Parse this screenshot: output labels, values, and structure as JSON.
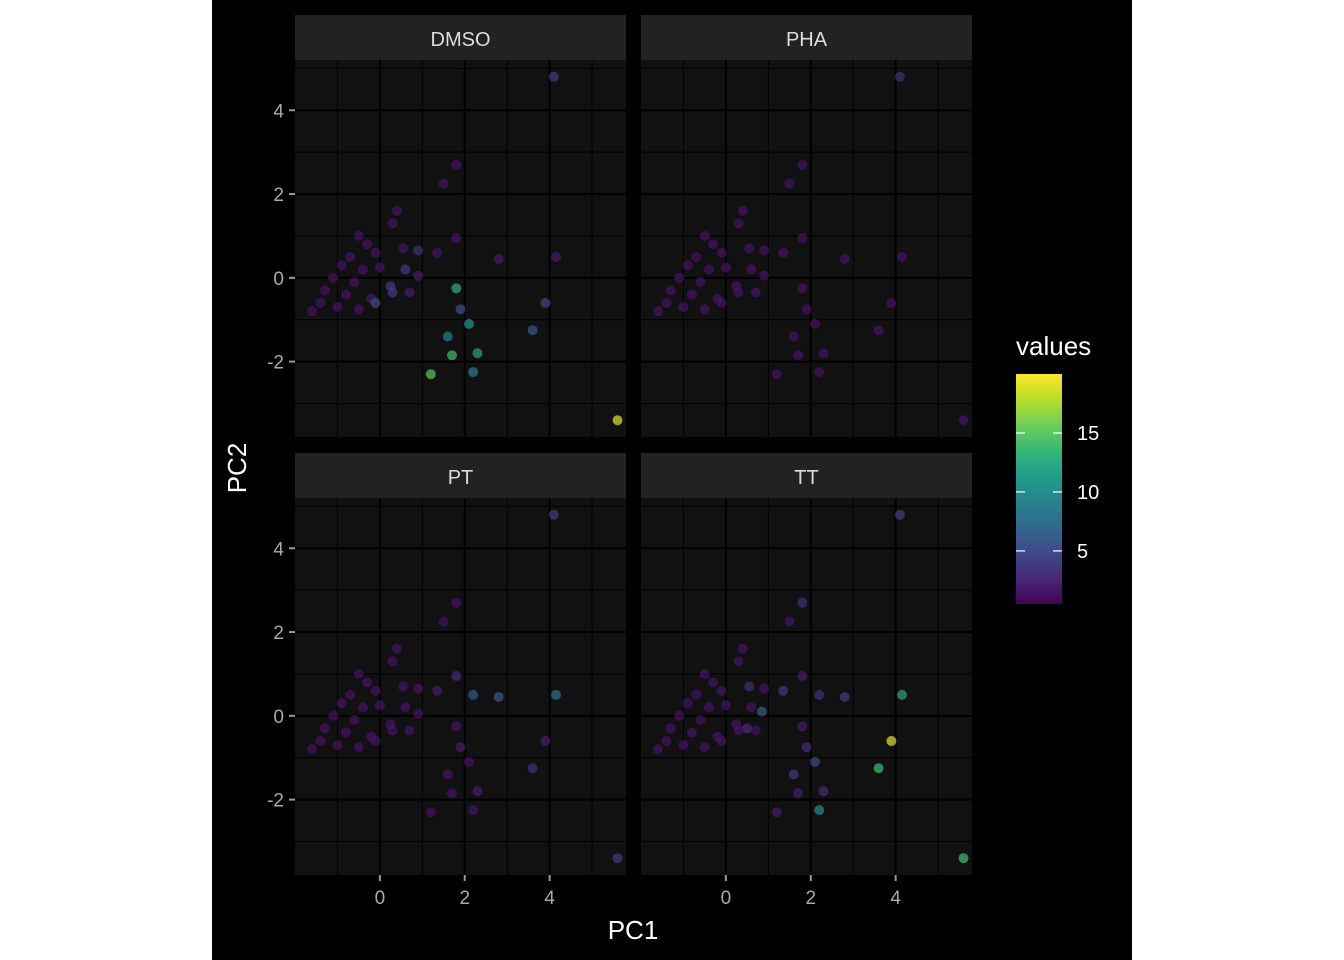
{
  "chart_data": {
    "type": "scatter",
    "title": "",
    "xlabel": "PC1",
    "ylabel": "PC2",
    "xlim": [
      -2,
      5.8
    ],
    "ylim": [
      -3.8,
      5.2
    ],
    "x_ticks": [
      0,
      2,
      4
    ],
    "y_ticks": [
      -2,
      0,
      2,
      4
    ],
    "grid": true,
    "legend": {
      "title": "values",
      "position": "right",
      "type": "colorbar",
      "range": [
        0.5,
        20
      ],
      "ticks": [
        5,
        10,
        15
      ]
    },
    "colormap": [
      "#440154",
      "#482878",
      "#3e4989",
      "#31688e",
      "#26828e",
      "#1f9e89",
      "#35b779",
      "#6ece58",
      "#b5de2b",
      "#fde725"
    ],
    "panels": [
      {
        "label": "DMSO",
        "points": [
          [
            4.1,
            4.8,
            4
          ],
          [
            1.8,
            2.7,
            1.5
          ],
          [
            1.5,
            2.25,
            1.5
          ],
          [
            0.4,
            1.6,
            1.5
          ],
          [
            0.3,
            1.3,
            1.5
          ],
          [
            1.8,
            0.95,
            1.5
          ],
          [
            1.35,
            0.6,
            1.5
          ],
          [
            0.9,
            0.65,
            3
          ],
          [
            2.8,
            0.45,
            2
          ],
          [
            4.15,
            0.5,
            2
          ],
          [
            0.55,
            0.7,
            1.5
          ],
          [
            -0.5,
            1.0,
            1.5
          ],
          [
            -0.3,
            0.8,
            1.5
          ],
          [
            -0.1,
            0.6,
            1.5
          ],
          [
            -0.7,
            0.5,
            1.5
          ],
          [
            -0.9,
            0.3,
            1.5
          ],
          [
            -0.4,
            0.2,
            1.5
          ],
          [
            0.0,
            0.25,
            1.5
          ],
          [
            -1.1,
            0.0,
            1.5
          ],
          [
            -0.6,
            -0.1,
            1.5
          ],
          [
            -1.3,
            -0.3,
            1.5
          ],
          [
            -0.8,
            -0.4,
            1.5
          ],
          [
            -1.6,
            -0.8,
            1.5
          ],
          [
            -1.4,
            -0.6,
            1.5
          ],
          [
            -1.0,
            -0.7,
            1.5
          ],
          [
            -0.5,
            -0.75,
            1.5
          ],
          [
            -0.2,
            -0.5,
            2
          ],
          [
            0.6,
            0.2,
            4
          ],
          [
            0.9,
            0.05,
            2
          ],
          [
            0.25,
            -0.2,
            4
          ],
          [
            0.3,
            -0.35,
            4
          ],
          [
            0.7,
            -0.35,
            2
          ],
          [
            -0.1,
            -0.6,
            5
          ],
          [
            1.8,
            -0.25,
            13
          ],
          [
            1.9,
            -0.75,
            5
          ],
          [
            2.1,
            -1.1,
            11
          ],
          [
            1.6,
            -1.4,
            9
          ],
          [
            2.3,
            -1.8,
            12
          ],
          [
            1.7,
            -1.85,
            14
          ],
          [
            2.2,
            -2.25,
            9
          ],
          [
            1.2,
            -2.3,
            15
          ],
          [
            3.6,
            -1.25,
            6
          ],
          [
            3.9,
            -0.6,
            5
          ],
          [
            5.6,
            -3.4,
            19
          ]
        ]
      },
      {
        "label": "PHA",
        "points": [
          [
            4.1,
            4.8,
            3
          ],
          [
            1.8,
            2.7,
            1.5
          ],
          [
            1.5,
            2.25,
            1.5
          ],
          [
            0.4,
            1.6,
            1.5
          ],
          [
            0.3,
            1.3,
            1.5
          ],
          [
            1.8,
            0.95,
            1.5
          ],
          [
            1.35,
            0.6,
            1.5
          ],
          [
            0.9,
            0.65,
            1.5
          ],
          [
            2.8,
            0.45,
            1.5
          ],
          [
            4.15,
            0.5,
            1.5
          ],
          [
            0.55,
            0.7,
            1.5
          ],
          [
            -0.5,
            1.0,
            1.5
          ],
          [
            -0.3,
            0.8,
            1.5
          ],
          [
            -0.1,
            0.6,
            1.5
          ],
          [
            -0.7,
            0.5,
            1.5
          ],
          [
            -0.9,
            0.3,
            1.5
          ],
          [
            -0.4,
            0.2,
            1.5
          ],
          [
            0.0,
            0.25,
            1.5
          ],
          [
            -1.1,
            0.0,
            1.5
          ],
          [
            -0.6,
            -0.1,
            1.5
          ],
          [
            -1.3,
            -0.3,
            1.5
          ],
          [
            -0.8,
            -0.4,
            1.5
          ],
          [
            -1.6,
            -0.8,
            1.5
          ],
          [
            -1.4,
            -0.6,
            1.5
          ],
          [
            -1.0,
            -0.7,
            1.5
          ],
          [
            -0.5,
            -0.75,
            1.5
          ],
          [
            -0.2,
            -0.5,
            1.5
          ],
          [
            0.6,
            0.2,
            1.5
          ],
          [
            0.9,
            0.05,
            1.5
          ],
          [
            0.25,
            -0.2,
            1.5
          ],
          [
            0.3,
            -0.35,
            1.5
          ],
          [
            0.7,
            -0.35,
            1.5
          ],
          [
            -0.1,
            -0.6,
            1.5
          ],
          [
            1.8,
            -0.25,
            1.5
          ],
          [
            1.9,
            -0.75,
            1.5
          ],
          [
            2.1,
            -1.1,
            1.5
          ],
          [
            1.6,
            -1.4,
            1.5
          ],
          [
            2.3,
            -1.8,
            1.5
          ],
          [
            1.7,
            -1.85,
            1.5
          ],
          [
            2.2,
            -2.25,
            1.5
          ],
          [
            1.2,
            -2.3,
            1.5
          ],
          [
            3.6,
            -1.25,
            1.5
          ],
          [
            3.9,
            -0.6,
            1.5
          ],
          [
            5.6,
            -3.4,
            1.5
          ]
        ]
      },
      {
        "label": "PT",
        "points": [
          [
            4.1,
            4.8,
            4
          ],
          [
            1.8,
            2.7,
            1.5
          ],
          [
            1.5,
            2.25,
            1.5
          ],
          [
            0.4,
            1.6,
            1.5
          ],
          [
            0.3,
            1.3,
            1.5
          ],
          [
            1.8,
            0.95,
            3
          ],
          [
            1.35,
            0.6,
            2
          ],
          [
            0.9,
            0.65,
            1.5
          ],
          [
            2.8,
            0.45,
            6
          ],
          [
            4.15,
            0.5,
            8
          ],
          [
            2.2,
            0.5,
            6
          ],
          [
            0.55,
            0.7,
            1.5
          ],
          [
            -0.5,
            1.0,
            1.5
          ],
          [
            -0.3,
            0.8,
            1.5
          ],
          [
            -0.1,
            0.6,
            1.5
          ],
          [
            -0.7,
            0.5,
            1.5
          ],
          [
            -0.9,
            0.3,
            1.5
          ],
          [
            -0.4,
            0.2,
            1.5
          ],
          [
            0.0,
            0.25,
            1.5
          ],
          [
            -1.1,
            0.0,
            1.5
          ],
          [
            -0.6,
            -0.1,
            1.5
          ],
          [
            -1.3,
            -0.3,
            1.5
          ],
          [
            -0.8,
            -0.4,
            1.5
          ],
          [
            -1.6,
            -0.8,
            1.5
          ],
          [
            -1.4,
            -0.6,
            1.5
          ],
          [
            -1.0,
            -0.7,
            1.5
          ],
          [
            -0.5,
            -0.75,
            1.5
          ],
          [
            -0.2,
            -0.5,
            1.5
          ],
          [
            0.6,
            0.2,
            1.5
          ],
          [
            0.9,
            0.05,
            1.5
          ],
          [
            0.25,
            -0.2,
            1.5
          ],
          [
            0.3,
            -0.35,
            1.5
          ],
          [
            0.7,
            -0.35,
            1.5
          ],
          [
            -0.1,
            -0.6,
            1.5
          ],
          [
            1.8,
            -0.25,
            1.5
          ],
          [
            1.9,
            -0.75,
            2
          ],
          [
            2.1,
            -1.1,
            1.5
          ],
          [
            1.6,
            -1.4,
            1.5
          ],
          [
            2.3,
            -1.8,
            2
          ],
          [
            1.7,
            -1.85,
            1.5
          ],
          [
            2.2,
            -2.25,
            1.5
          ],
          [
            1.2,
            -2.3,
            1.5
          ],
          [
            3.6,
            -1.25,
            3
          ],
          [
            3.9,
            -0.6,
            2
          ],
          [
            5.6,
            -3.4,
            4
          ]
        ]
      },
      {
        "label": "TT",
        "points": [
          [
            4.1,
            4.8,
            4
          ],
          [
            1.8,
            2.7,
            3
          ],
          [
            1.5,
            2.25,
            1.5
          ],
          [
            0.4,
            1.6,
            1.5
          ],
          [
            0.3,
            1.3,
            1.5
          ],
          [
            1.8,
            0.95,
            2
          ],
          [
            1.35,
            0.6,
            4
          ],
          [
            0.9,
            0.65,
            1.5
          ],
          [
            2.8,
            0.45,
            4
          ],
          [
            4.15,
            0.5,
            12
          ],
          [
            2.2,
            0.5,
            3
          ],
          [
            0.55,
            0.7,
            3
          ],
          [
            0.85,
            0.1,
            6
          ],
          [
            0.5,
            -0.3,
            3
          ],
          [
            -0.5,
            1.0,
            1.5
          ],
          [
            -0.3,
            0.8,
            1.5
          ],
          [
            -0.1,
            0.6,
            1.5
          ],
          [
            -0.7,
            0.5,
            1.5
          ],
          [
            -0.9,
            0.3,
            1.5
          ],
          [
            -0.4,
            0.2,
            1.5
          ],
          [
            0.0,
            0.25,
            1.5
          ],
          [
            -1.1,
            0.0,
            1.5
          ],
          [
            -0.6,
            -0.1,
            1.5
          ],
          [
            -1.3,
            -0.3,
            1.5
          ],
          [
            -0.8,
            -0.4,
            1.5
          ],
          [
            -1.6,
            -0.8,
            1.5
          ],
          [
            -1.4,
            -0.6,
            1.5
          ],
          [
            -1.0,
            -0.7,
            1.5
          ],
          [
            -0.5,
            -0.75,
            1.5
          ],
          [
            -0.2,
            -0.5,
            1.5
          ],
          [
            0.6,
            0.2,
            1.5
          ],
          [
            0.25,
            -0.2,
            1.5
          ],
          [
            0.3,
            -0.35,
            1.5
          ],
          [
            0.7,
            -0.35,
            1.5
          ],
          [
            -0.1,
            -0.6,
            1.5
          ],
          [
            1.8,
            -0.25,
            2
          ],
          [
            1.9,
            -0.75,
            3
          ],
          [
            2.1,
            -1.1,
            5
          ],
          [
            1.6,
            -1.4,
            4
          ],
          [
            2.3,
            -1.8,
            3
          ],
          [
            1.7,
            -1.85,
            2
          ],
          [
            2.2,
            -2.25,
            10
          ],
          [
            1.2,
            -2.3,
            2
          ],
          [
            3.6,
            -1.25,
            14
          ],
          [
            3.9,
            -0.6,
            19
          ],
          [
            5.6,
            -3.4,
            14
          ]
        ]
      }
    ]
  }
}
